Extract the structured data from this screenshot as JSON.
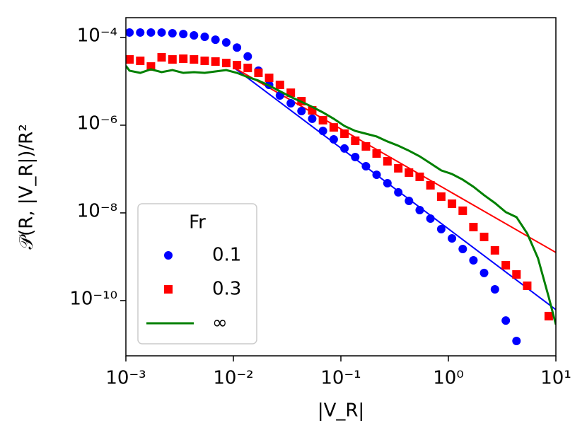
{
  "chart_data": {
    "type": "scatter",
    "xlabel": "|V_R|",
    "ylabel": "𝒫(R, |V_R|)/R²",
    "xscale": "log",
    "yscale": "log",
    "xlim": [
      0.001,
      10
    ],
    "ylim": [
      5.5e-12,
      0.000283
    ],
    "xticks": [
      {
        "value": 0.001,
        "label": "10⁻³"
      },
      {
        "value": 0.01,
        "label": "10⁻²"
      },
      {
        "value": 0.1,
        "label": "10⁻¹"
      },
      {
        "value": 1,
        "label": "10⁰"
      },
      {
        "value": 10,
        "label": "10¹"
      }
    ],
    "yticks": [
      {
        "value": 0.0001,
        "label": "10⁻⁴"
      },
      {
        "value": 1e-06,
        "label": "10⁻⁶"
      },
      {
        "value": 1e-08,
        "label": "10⁻⁸"
      },
      {
        "value": 1e-10,
        "label": "10⁻¹⁰"
      }
    ],
    "grid": false,
    "legend_title": "Fr",
    "legend_position": "lower left",
    "series": [
      {
        "name": "0.1",
        "color": "#0000ff",
        "marker": "circle",
        "x": [
          0.00108,
          0.00136,
          0.00171,
          0.00215,
          0.00271,
          0.00342,
          0.0043,
          0.00541,
          0.00681,
          0.00858,
          0.0108,
          0.0136,
          0.0171,
          0.0215,
          0.0271,
          0.0342,
          0.043,
          0.0541,
          0.0681,
          0.0858,
          0.108,
          0.136,
          0.171,
          0.215,
          0.271,
          0.342,
          0.43,
          0.541,
          0.681,
          0.858,
          1.08,
          1.36,
          1.71,
          2.15,
          2.71,
          3.42,
          4.3
        ],
        "values": [
          0.00013,
          0.00013,
          0.00013,
          0.00013,
          0.000125,
          0.00012,
          0.000112,
          0.000104,
          8.9e-05,
          7.7e-05,
          5.9e-05,
          3.7e-05,
          1.75e-05,
          8.3e-06,
          4.75e-06,
          3.16e-06,
          2.1e-06,
          1.4e-06,
          7.4e-07,
          4.75e-07,
          2.94e-07,
          1.88e-07,
          1.16e-07,
          7.4e-08,
          4.75e-08,
          2.94e-08,
          1.88e-08,
          1.16e-08,
          7.4e-09,
          4.26e-09,
          2.62e-09,
          1.5e-09,
          8.3e-10,
          4.26e-10,
          1.81e-10,
          3.5e-11,
          1.2e-11
        ]
      },
      {
        "name": "0.3",
        "color": "#ff0000",
        "marker": "square",
        "x": [
          0.00108,
          0.00136,
          0.00171,
          0.00215,
          0.00271,
          0.00342,
          0.0043,
          0.00541,
          0.00681,
          0.00858,
          0.0108,
          0.0136,
          0.0171,
          0.0215,
          0.0271,
          0.0342,
          0.043,
          0.0541,
          0.0681,
          0.0858,
          0.108,
          0.136,
          0.171,
          0.215,
          0.271,
          0.342,
          0.43,
          0.541,
          0.681,
          0.858,
          1.08,
          1.36,
          1.71,
          2.15,
          2.71,
          3.42,
          4.3,
          5.41,
          8.58
        ],
        "values": [
          3.16e-05,
          2.94e-05,
          2.18e-05,
          3.53e-05,
          3.16e-05,
          3.28e-05,
          3.16e-05,
          2.94e-05,
          2.83e-05,
          2.62e-05,
          2.35e-05,
          2.02e-05,
          1.56e-05,
          1.2e-05,
          8.3e-06,
          5.5e-06,
          3.53e-06,
          2.18e-06,
          1.3e-06,
          8.9e-07,
          6.4e-07,
          4.42e-07,
          3.28e-07,
          2.26e-07,
          1.5e-07,
          1.04e-07,
          8.3e-08,
          6.65e-08,
          4.26e-08,
          2.35e-08,
          1.62e-08,
          1.12e-08,
          4.75e-09,
          2.83e-09,
          1.4e-09,
          6.4e-10,
          3.95e-10,
          2.18e-10,
          4.42e-11
        ]
      },
      {
        "name": "∞",
        "color": "#008000",
        "marker": "line",
        "x": [
          0.001,
          0.00108,
          0.00136,
          0.00171,
          0.00215,
          0.00271,
          0.00342,
          0.0043,
          0.00541,
          0.00681,
          0.00858,
          0.0108,
          0.0136,
          0.0171,
          0.0215,
          0.0271,
          0.0342,
          0.043,
          0.0541,
          0.0681,
          0.0858,
          0.108,
          0.136,
          0.171,
          0.215,
          0.271,
          0.342,
          0.43,
          0.541,
          0.681,
          0.858,
          1.08,
          1.36,
          1.71,
          2.15,
          2.71,
          3.42,
          4.3,
          5.41,
          6.81,
          8.58,
          10
        ],
        "values": [
          2.26e-05,
          1.75e-05,
          1.56e-05,
          1.88e-05,
          1.62e-05,
          1.81e-05,
          1.56e-05,
          1.62e-05,
          1.56e-05,
          1.68e-05,
          1.81e-05,
          1.56e-05,
          1.25e-05,
          1.04e-05,
          8e-06,
          5.94e-06,
          4.42e-06,
          3.4e-06,
          2.62e-06,
          1.95e-06,
          1.4e-06,
          9.6e-07,
          7.4e-07,
          6.4e-07,
          5.52e-07,
          4.26e-07,
          3.4e-07,
          2.62e-07,
          1.95e-07,
          1.35e-07,
          9.3e-08,
          7.7e-08,
          5.73e-08,
          3.95e-08,
          2.53e-08,
          1.68e-08,
          1.04e-08,
          8e-09,
          3.4e-09,
          9.3e-10,
          1.2e-10,
          2.83e-11
        ]
      }
    ],
    "fit_lines": [
      {
        "color": "#0000ff",
        "x": [
          0.01,
          10
        ],
        "values": [
          2.1e-05,
          6.2e-11
        ]
      },
      {
        "color": "#ff0000",
        "x": [
          0.01,
          10
        ],
        "values": [
          2.1e-05,
          1.25e-09
        ]
      }
    ]
  }
}
